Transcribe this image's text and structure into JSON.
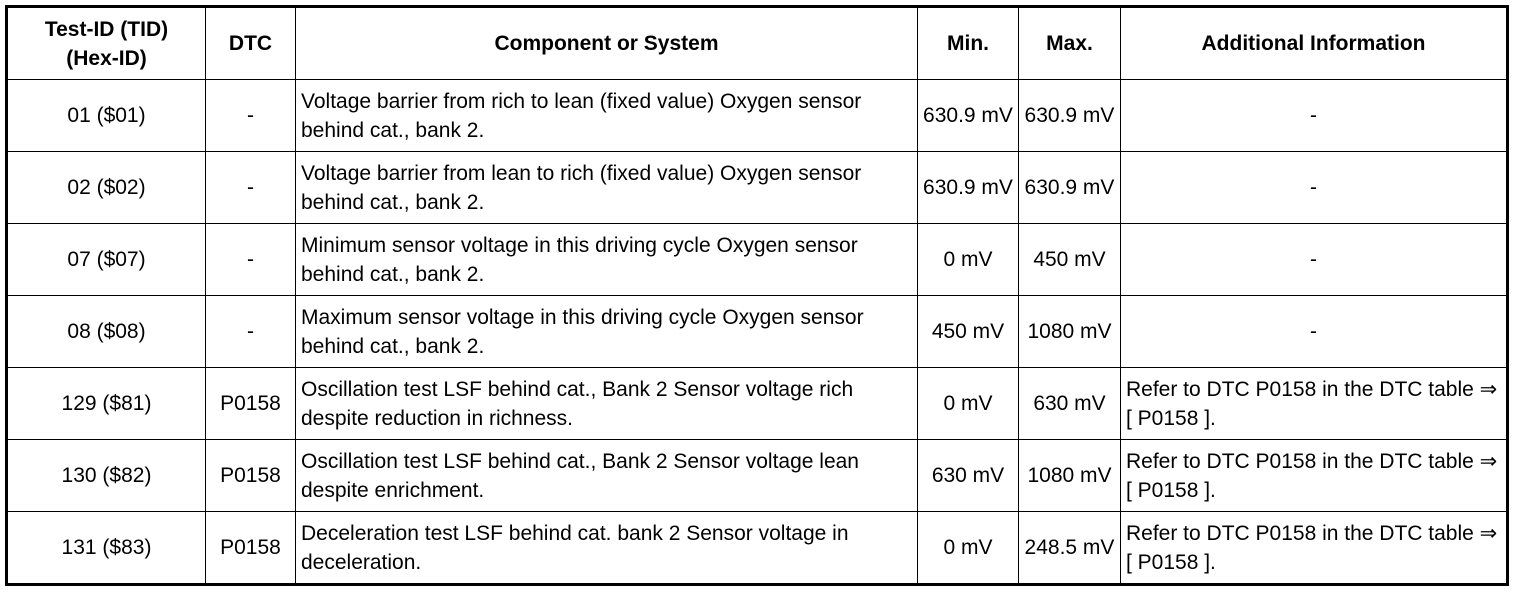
{
  "table": {
    "headers": [
      "Test-ID (TID)\n(Hex-ID)",
      "DTC",
      "Component or System",
      "Min.",
      "Max.",
      "Additional Information"
    ],
    "rows": [
      {
        "tid": "01 ($01)",
        "dtc": "-",
        "component": "Voltage barrier from rich to lean (fixed value) Oxygen sensor behind cat., bank 2.",
        "min": "630.9 mV",
        "max": "630.9 mV",
        "info": "-"
      },
      {
        "tid": "02 ($02)",
        "dtc": "-",
        "component": "Voltage barrier from lean to rich (fixed value) Oxygen sensor behind cat., bank 2.",
        "min": "630.9 mV",
        "max": "630.9 mV",
        "info": "-"
      },
      {
        "tid": "07 ($07)",
        "dtc": "-",
        "component": "Minimum sensor voltage in this driving cycle Oxygen sensor behind cat., bank 2.",
        "min": "0 mV",
        "max": "450 mV",
        "info": "-"
      },
      {
        "tid": "08 ($08)",
        "dtc": "-",
        "component": "Maximum sensor voltage in this driving cycle Oxygen sensor behind cat., bank 2.",
        "min": "450 mV",
        "max": "1080 mV",
        "info": "-"
      },
      {
        "tid": "129 ($81)",
        "dtc": "P0158",
        "component": "Oscillation test LSF behind cat., Bank 2 Sensor voltage rich despite reduction in richness.",
        "min": "0 mV",
        "max": "630 mV",
        "info": "Refer to DTC P0158 in the DTC table",
        "ref": "⇒ [ P0158 ]."
      },
      {
        "tid": "130 ($82)",
        "dtc": "P0158",
        "component": "Oscillation test LSF behind cat., Bank 2 Sensor voltage lean despite enrichment.",
        "min": "630 mV",
        "max": "1080 mV",
        "info": "Refer to DTC P0158 in the DTC table",
        "ref": "⇒ [ P0158 ]."
      },
      {
        "tid": "131 ($83)",
        "dtc": "P0158",
        "component": "Deceleration test LSF behind cat. bank 2 Sensor voltage in deceleration.",
        "min": "0 mV",
        "max": "248.5 mV",
        "info": "Refer to DTC P0158 in the DTC table",
        "ref": "⇒ [ P0158 ]."
      }
    ]
  }
}
